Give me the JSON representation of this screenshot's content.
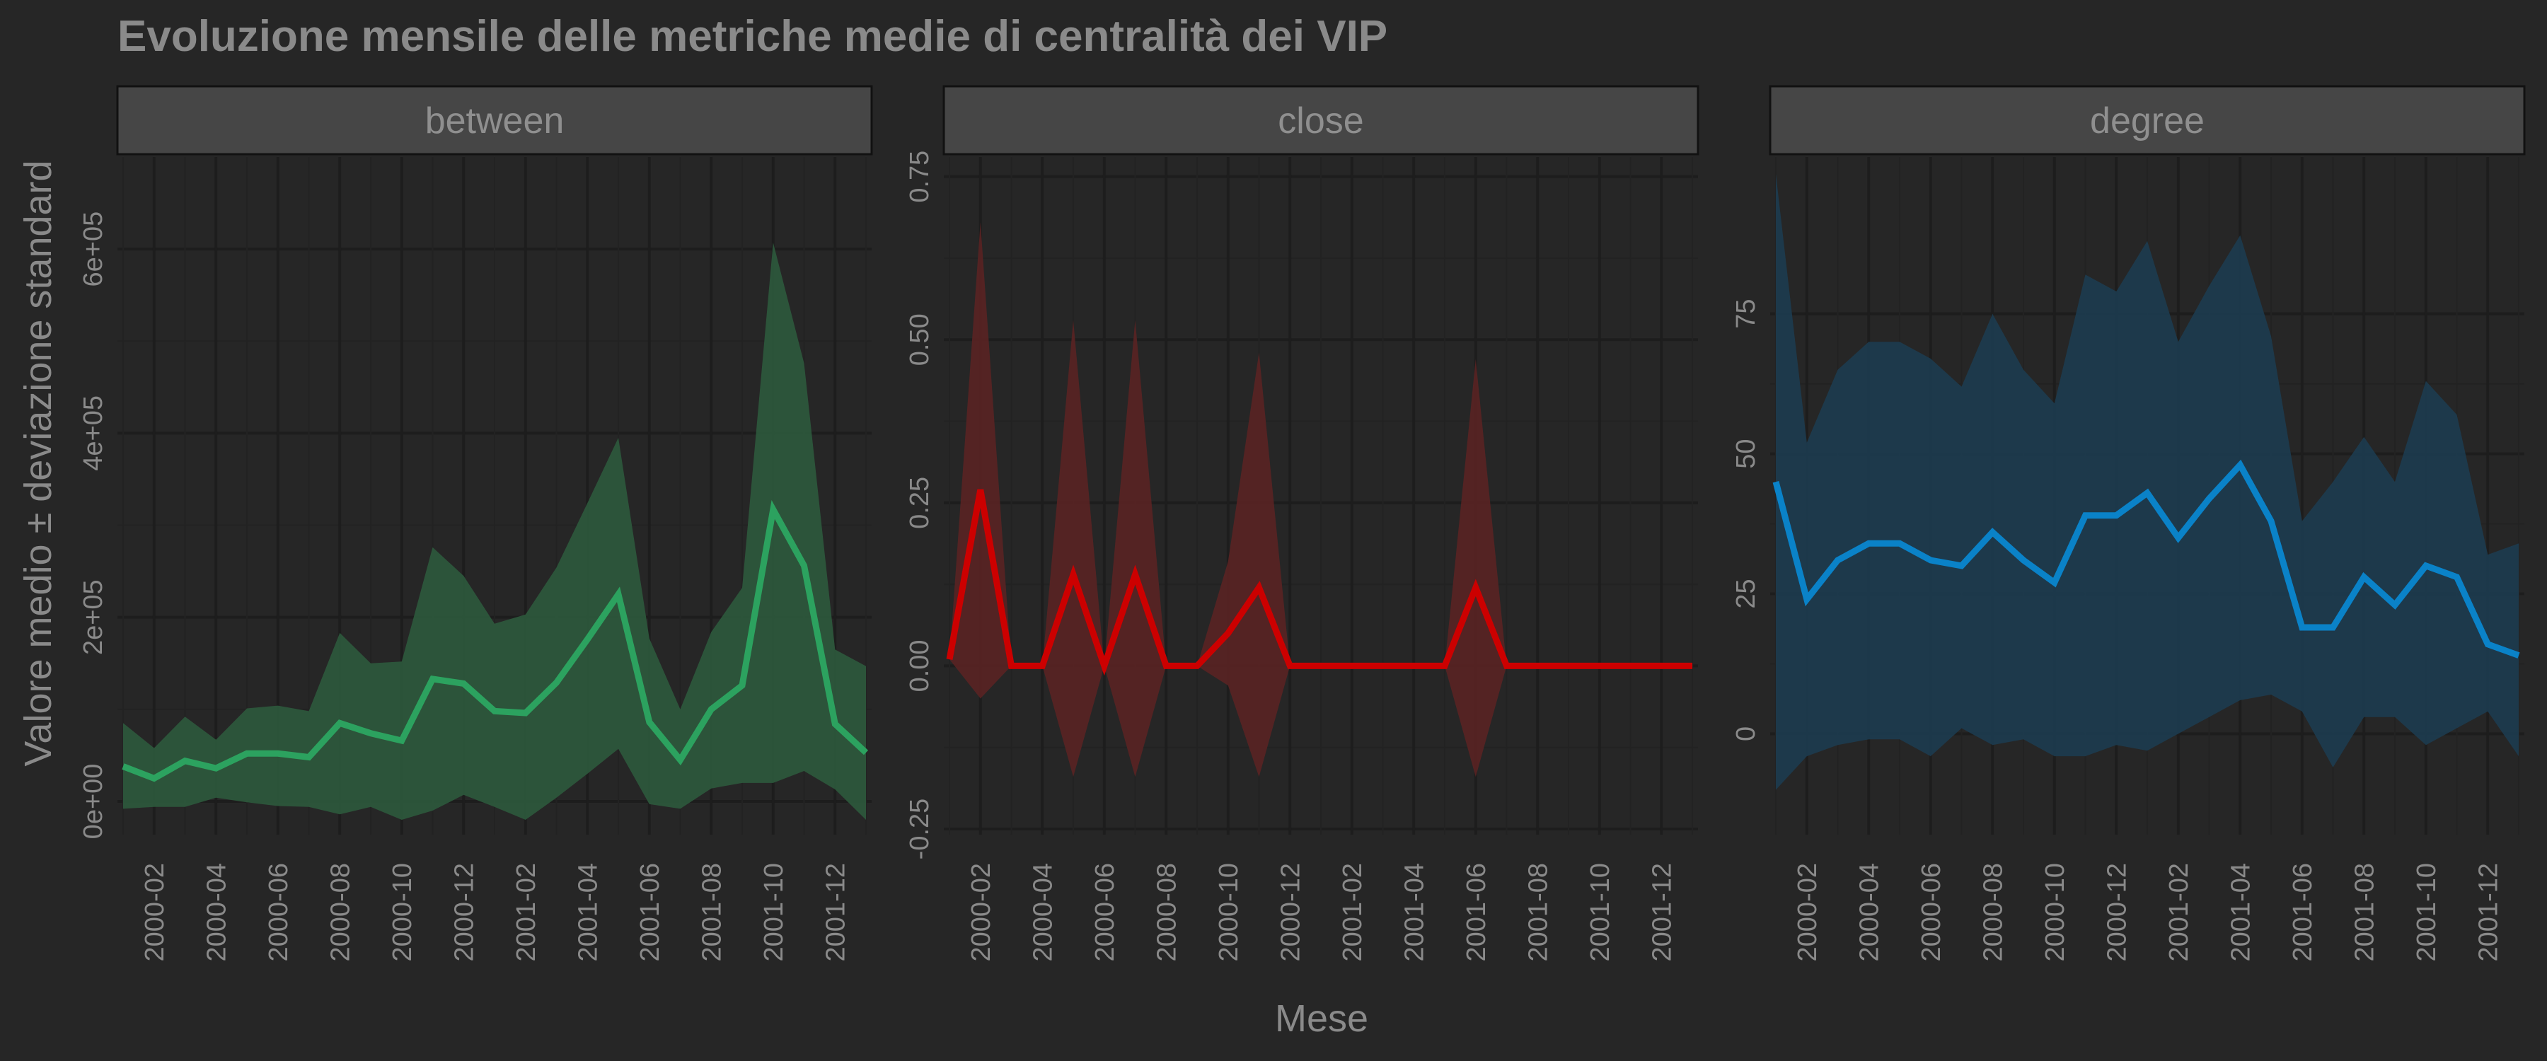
{
  "title": "Evoluzione mensile delle metriche medie di centralità dei VIP",
  "xlabel": "Mese",
  "ylabel": "Valore medio ± deviazione standard",
  "chart_data": {
    "type": "line",
    "title": "Evoluzione mensile delle metriche medie di centralità dei VIP",
    "xlabel": "Mese",
    "ylabel": "Valore medio ± deviazione standard",
    "x": [
      "2000-01",
      "2000-02",
      "2000-03",
      "2000-04",
      "2000-05",
      "2000-06",
      "2000-07",
      "2000-08",
      "2000-09",
      "2000-10",
      "2000-11",
      "2000-12",
      "2001-01",
      "2001-02",
      "2001-03",
      "2001-04",
      "2001-05",
      "2001-06",
      "2001-07",
      "2001-08",
      "2001-09",
      "2001-10",
      "2001-11",
      "2001-12",
      "2002-01"
    ],
    "x_tick_labels": [
      "2000-02",
      "2000-04",
      "2000-06",
      "2000-08",
      "2000-10",
      "2000-12",
      "2001-02",
      "2001-04",
      "2001-06",
      "2001-08",
      "2001-10",
      "2001-12"
    ],
    "grid": true,
    "legend": "none",
    "facets": [
      {
        "name": "between",
        "color": "#2ca25f",
        "band_color": "#2d5a3d",
        "ylim": [
          -30000,
          700000
        ],
        "y_tick_labels": [
          "0e+00",
          "2e+05",
          "4e+05",
          "6e+05"
        ],
        "y_ticks": [
          0,
          200000,
          400000,
          600000
        ],
        "mean": [
          38000,
          25000,
          44000,
          36000,
          52000,
          52000,
          48000,
          85000,
          74000,
          66000,
          133000,
          128000,
          98000,
          96000,
          129000,
          176000,
          225000,
          86000,
          45000,
          100000,
          126000,
          317000,
          256000,
          84000,
          53000
        ],
        "lower": [
          -8000,
          -6000,
          -6000,
          4000,
          -1000,
          -5000,
          -6000,
          -14000,
          -6000,
          -20000,
          -10000,
          7000,
          -6000,
          -20000,
          4000,
          30000,
          57000,
          -3000,
          -8000,
          14000,
          20000,
          20000,
          33000,
          13000,
          -20000
        ],
        "upper": [
          85000,
          58000,
          92000,
          67000,
          101000,
          104000,
          98000,
          183000,
          150000,
          152000,
          276000,
          245000,
          193000,
          203000,
          254000,
          324000,
          395000,
          177000,
          100000,
          184000,
          232000,
          607000,
          476000,
          165000,
          147000
        ]
      },
      {
        "name": "close",
        "color": "#cc0000",
        "band_color": "#5a2424",
        "ylim": [
          -0.25,
          0.78
        ],
        "y_tick_labels": [
          "-0.25",
          "0.00",
          "0.25",
          "0.50",
          "0.75"
        ],
        "y_ticks": [
          -0.25,
          0,
          0.25,
          0.5,
          0.75
        ],
        "mean": [
          0.01,
          0.27,
          0,
          0,
          0.14,
          0,
          0.14,
          0,
          0,
          0.05,
          0.12,
          0,
          0,
          0,
          0,
          0,
          0,
          0.12,
          0,
          0,
          0,
          0,
          0,
          0,
          0
        ],
        "lower": [
          0.01,
          -0.05,
          0,
          0,
          -0.17,
          0,
          -0.17,
          0,
          0,
          -0.03,
          -0.17,
          0,
          0,
          0,
          0,
          0,
          0,
          -0.17,
          0,
          0,
          0,
          0,
          0,
          0,
          0
        ],
        "upper": [
          0.01,
          0.68,
          0,
          0,
          0.53,
          0,
          0.53,
          0,
          0,
          0.16,
          0.48,
          0,
          0,
          0,
          0,
          0,
          0,
          0.47,
          0,
          0,
          0,
          0,
          0,
          0,
          0
        ]
      },
      {
        "name": "degree",
        "color": "#0a82c8",
        "band_color": "#1d3c50",
        "ylim": [
          -17,
          103
        ],
        "y_tick_labels": [
          "0",
          "25",
          "50",
          "75"
        ],
        "y_ticks": [
          0,
          25,
          50,
          75
        ],
        "mean": [
          45,
          24,
          31,
          34,
          34,
          31,
          30,
          36,
          31,
          27,
          39,
          39,
          43,
          35,
          42,
          48,
          38,
          19,
          19,
          28,
          23,
          30,
          28,
          16,
          14
        ],
        "lower": [
          -10,
          -4,
          -2,
          -1,
          -1,
          -4,
          1,
          -2,
          -1,
          -4,
          -4,
          -2,
          -3,
          0,
          3,
          6,
          7,
          4,
          -6,
          3,
          3,
          -2,
          1,
          4,
          -4
        ],
        "upper": [
          100,
          52,
          65,
          70,
          70,
          67,
          62,
          75,
          65,
          59,
          82,
          79,
          88,
          70,
          80,
          89,
          71,
          38,
          45,
          53,
          45,
          63,
          57,
          32,
          34
        ]
      }
    ]
  }
}
